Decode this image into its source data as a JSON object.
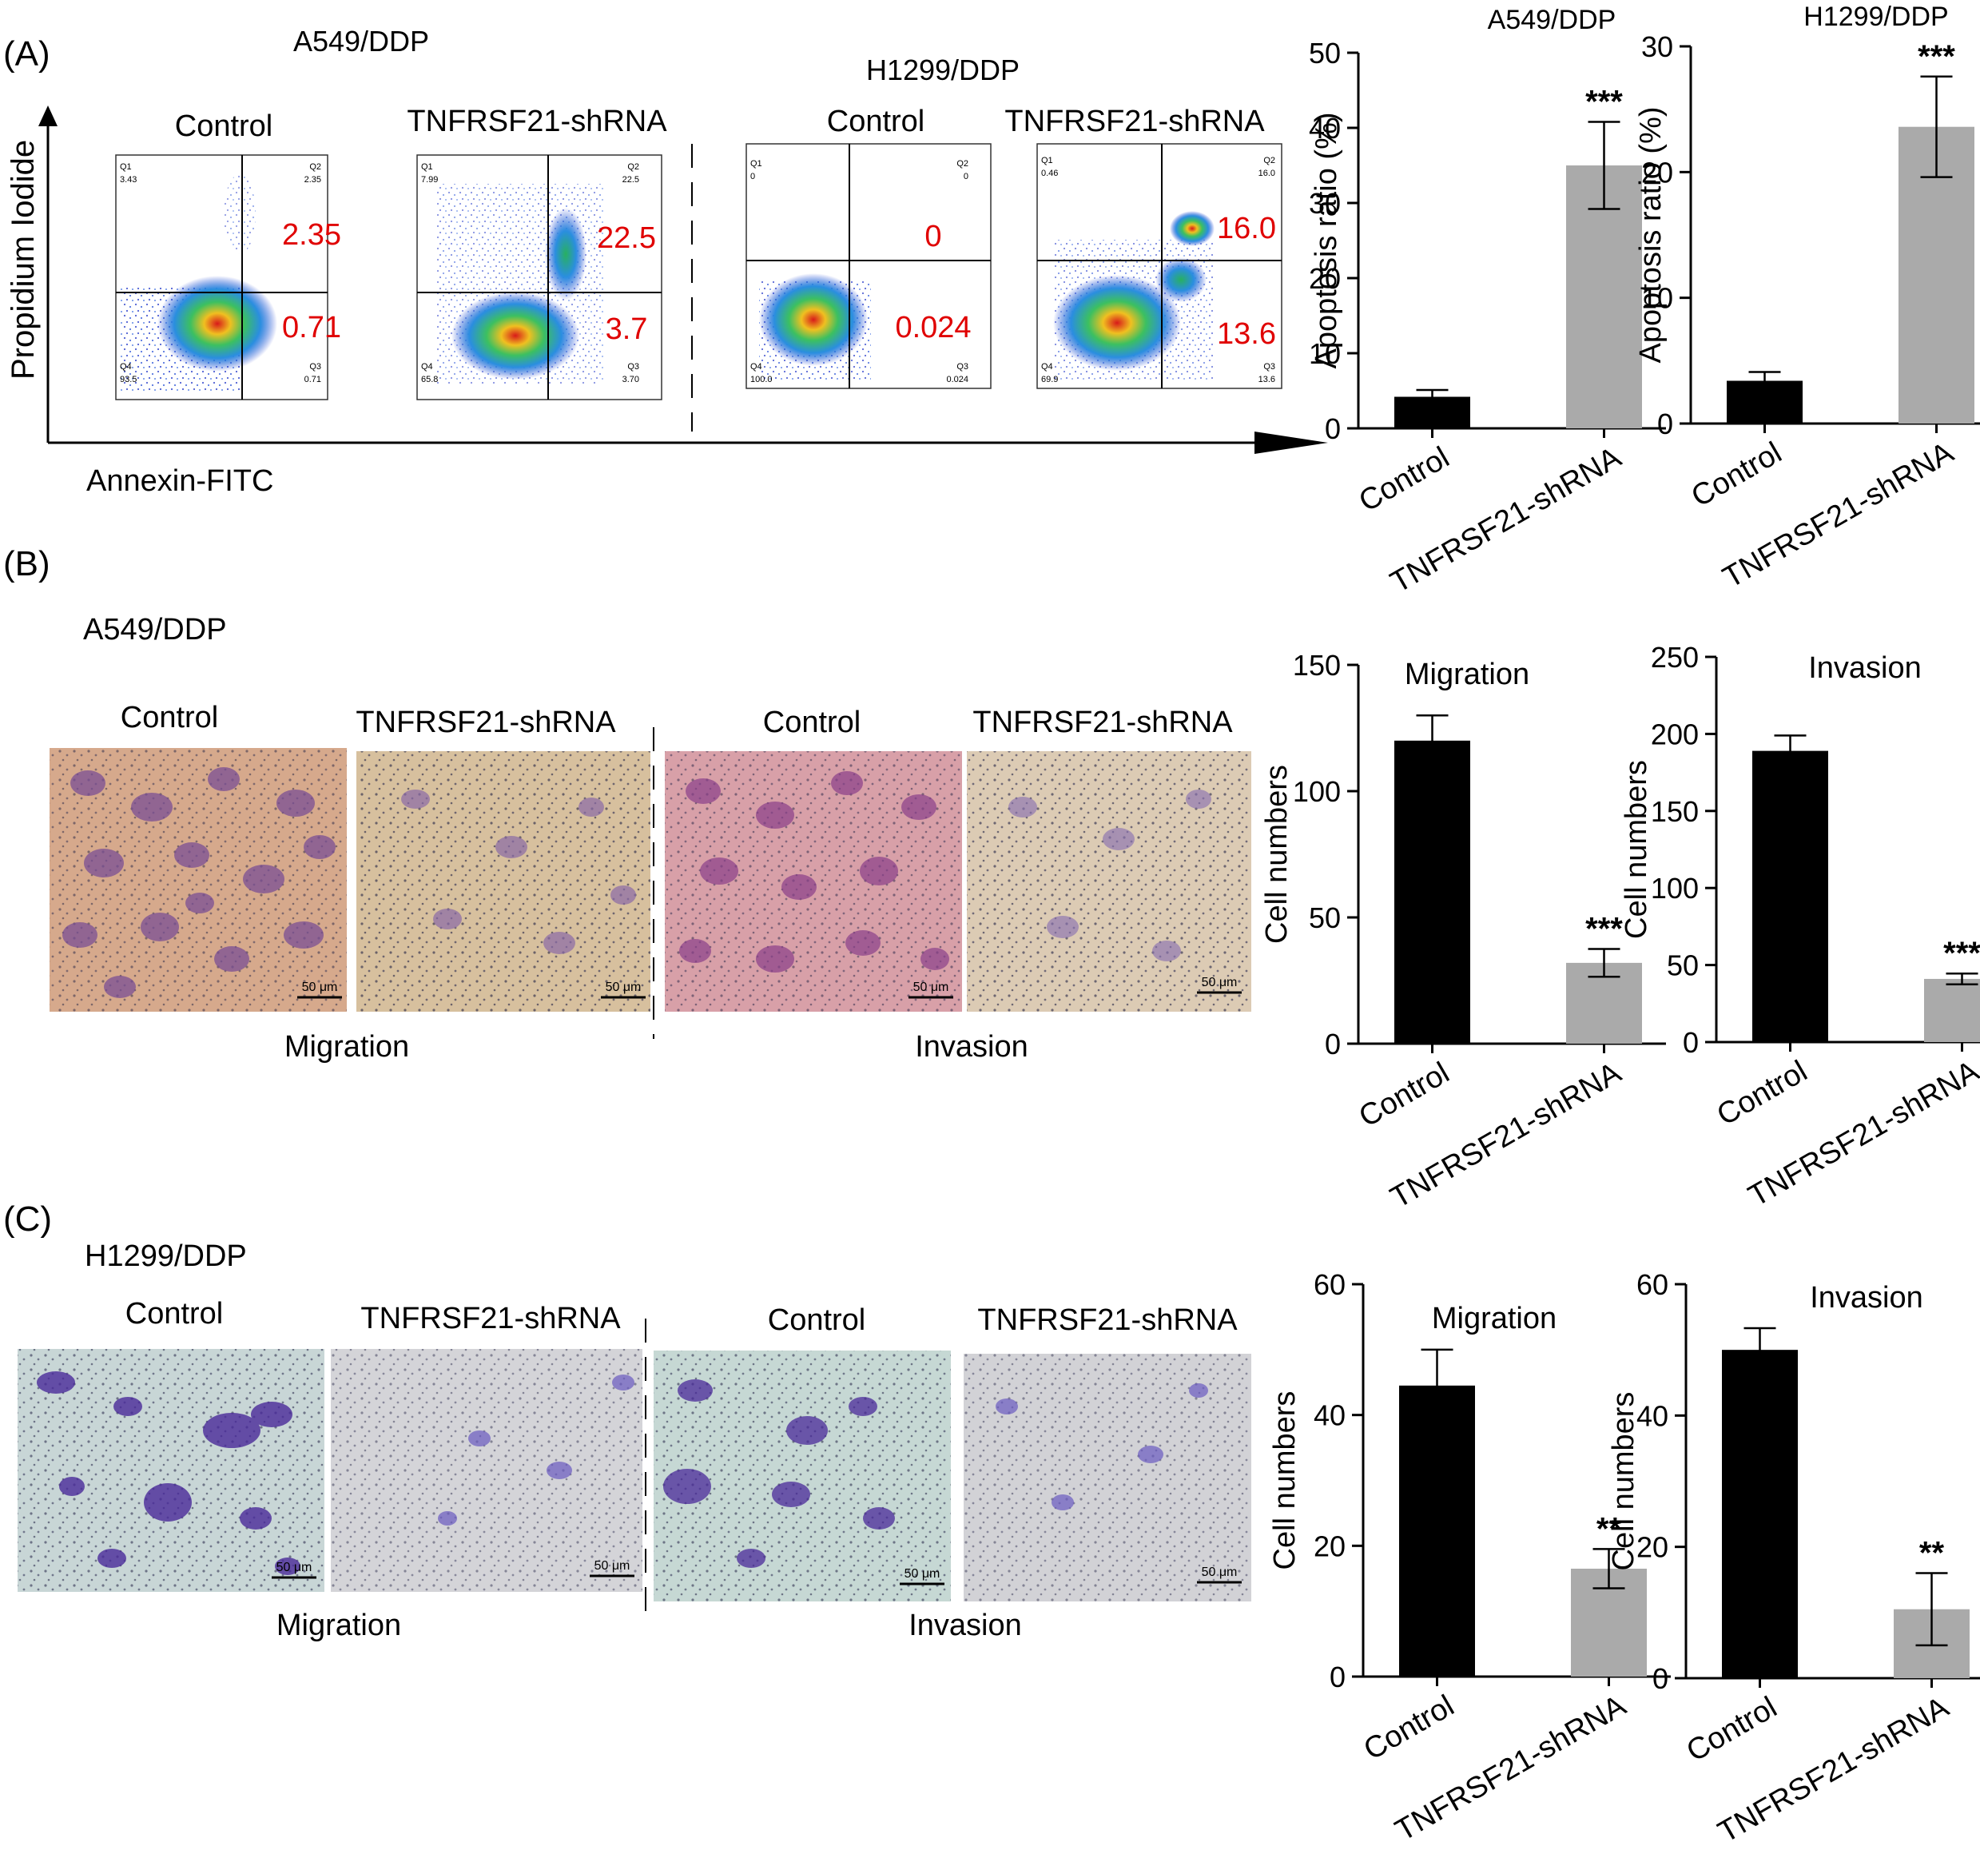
{
  "panel_a": {
    "label": "(A)",
    "y_axis_label": "Propidium Iodide",
    "x_axis_label": "Annexin-FITC",
    "plots": [
      {
        "cell_line": "A549/DDP",
        "group": "Control",
        "quad_value_top": "2.35",
        "quad_value_bottom": "0.71",
        "q1_label": "Q1",
        "q1_value": "3.43",
        "q2_label": "Q2",
        "q2_value": "2.35",
        "q3_label": "Q3",
        "q3_value": "0.71",
        "q4_label": "Q4",
        "q4_value": "93.5"
      },
      {
        "cell_line": "A549/DDP",
        "group": "TNFRSF21-shRNA",
        "quad_value_top": "22.5",
        "quad_value_bottom": "3.7",
        "q1_label": "Q1",
        "q1_value": "7.99",
        "q2_label": "Q2",
        "q2_value": "22.5",
        "q3_label": "Q3",
        "q3_value": "3.70",
        "q4_label": "Q4",
        "q4_value": "65.8"
      },
      {
        "cell_line": "H1299/DDP",
        "group": "Control",
        "quad_value_top": "0",
        "quad_value_bottom": "0.024",
        "q1_label": "Q1",
        "q1_value": "0",
        "q2_label": "Q2",
        "q2_value": "0",
        "q3_label": "Q3",
        "q3_value": "0.024",
        "q4_label": "Q4",
        "q4_value": "100.0"
      },
      {
        "cell_line": "H1299/DDP",
        "group": "TNFRSF21-shRNA",
        "quad_value_top": "16.0",
        "quad_value_bottom": "13.6",
        "q1_label": "Q1",
        "q1_value": "0.46",
        "q2_label": "Q2",
        "q2_value": "16.0",
        "q3_label": "Q3",
        "q3_value": "13.6",
        "q4_label": "Q4",
        "q4_value": "69.9"
      }
    ]
  },
  "panel_b": {
    "label": "(B)",
    "cell_line": "A549/DDP",
    "groups": [
      "Control",
      "TNFRSF21-shRNA",
      "Control",
      "TNFRSF21-shRNA"
    ],
    "assays": [
      "Migration",
      "Invasion"
    ],
    "scale_bar": "50 μm"
  },
  "panel_c": {
    "label": "(C)",
    "cell_line": "H1299/DDP",
    "groups": [
      "Control",
      "TNFRSF21-shRNA",
      "Control",
      "TNFRSF21-shRNA"
    ],
    "assays": [
      "Migration",
      "Invasion"
    ],
    "scale_bar": "50 μm"
  },
  "colors": {
    "control_bar": "#000000",
    "shrna_bar": "#aaaaaa",
    "quadrant_value": "#e00000"
  },
  "chart_data": [
    {
      "type": "bar",
      "id": "a549-apoptosis",
      "title": "A549/DDP",
      "categories": [
        "Control",
        "TNFRSF21-shRNA"
      ],
      "values": [
        4.2,
        35
      ],
      "errors": [
        0.9,
        5.8
      ],
      "significance": [
        "",
        "***"
      ],
      "ylabel": "Apoptosis ratio (%)",
      "ylim": [
        0,
        50
      ],
      "yticks": [
        0,
        10,
        20,
        30,
        40,
        50
      ]
    },
    {
      "type": "bar",
      "id": "h1299-apoptosis",
      "title": "H1299/DDP",
      "categories": [
        "Control",
        "TNFRSF21-shRNA"
      ],
      "values": [
        3.4,
        23.6
      ],
      "errors": [
        0.7,
        4.0
      ],
      "significance": [
        "",
        "***"
      ],
      "ylabel": "Apoptosis ratio (%)",
      "ylim": [
        0,
        30
      ],
      "yticks": [
        0,
        10,
        20,
        30
      ]
    },
    {
      "type": "bar",
      "id": "b-migration",
      "title": "Migration",
      "categories": [
        "Control",
        "TNFRSF21-shRNA"
      ],
      "values": [
        120,
        32
      ],
      "errors": [
        10,
        5.5
      ],
      "significance": [
        "",
        "***"
      ],
      "ylabel": "Cell numbers",
      "ylim": [
        0,
        150
      ],
      "yticks": [
        0,
        50,
        100,
        150
      ]
    },
    {
      "type": "bar",
      "id": "b-invasion",
      "title": "Invasion",
      "categories": [
        "Control",
        "TNFRSF21-shRNA"
      ],
      "values": [
        189,
        41
      ],
      "errors": [
        10,
        3.5
      ],
      "significance": [
        "",
        "***"
      ],
      "ylabel": "Cell numbers",
      "ylim": [
        0,
        250
      ],
      "yticks": [
        0,
        50,
        100,
        150,
        200,
        250
      ]
    },
    {
      "type": "bar",
      "id": "c-migration",
      "title": "Migration",
      "categories": [
        "Control",
        "TNFRSF21-shRNA"
      ],
      "values": [
        44.5,
        16.5
      ],
      "errors": [
        5.5,
        3.0
      ],
      "significance": [
        "",
        "**"
      ],
      "ylabel": "Cell numbers",
      "ylim": [
        0,
        60
      ],
      "yticks": [
        0,
        20,
        40,
        60
      ]
    },
    {
      "type": "bar",
      "id": "c-invasion",
      "title": "Invasion",
      "categories": [
        "Control",
        "TNFRSF21-shRNA"
      ],
      "values": [
        50,
        10.5
      ],
      "errors": [
        3.3,
        5.5
      ],
      "significance": [
        "",
        "**"
      ],
      "ylabel": "Cell numbers",
      "ylim": [
        0,
        60
      ],
      "yticks": [
        0,
        20,
        40,
        60
      ]
    }
  ]
}
